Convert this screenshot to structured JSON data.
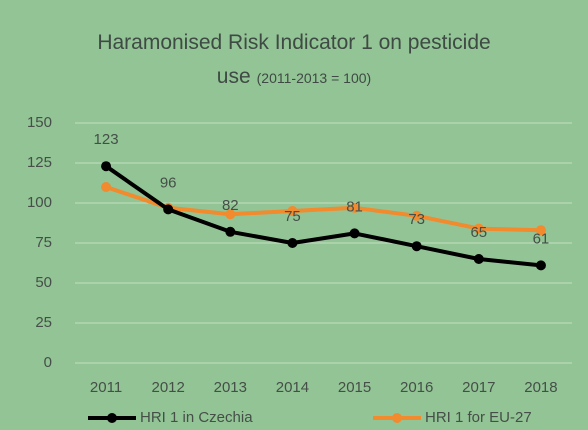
{
  "chart_data": {
    "type": "line",
    "title": "Haramonised Risk Indicator 1 on pesticide use",
    "subtitle": "(2011-2013 = 100)",
    "categories": [
      "2011",
      "2012",
      "2013",
      "2014",
      "2015",
      "2016",
      "2017",
      "2018"
    ],
    "series": [
      {
        "name": "HRI 1 in Czechia",
        "color": "#000000",
        "values": [
          123,
          96,
          82,
          75,
          81,
          73,
          65,
          61
        ],
        "data_labels": true
      },
      {
        "name": "HRI 1 for EU-27",
        "color": "#f28a2e",
        "values": [
          110,
          97,
          93,
          95,
          97,
          92,
          84,
          83
        ],
        "data_labels": false
      }
    ],
    "ylim": [
      0,
      150
    ],
    "yticks": [
      0,
      25,
      50,
      75,
      100,
      125,
      150
    ],
    "grid": true,
    "legend": "bottom"
  }
}
